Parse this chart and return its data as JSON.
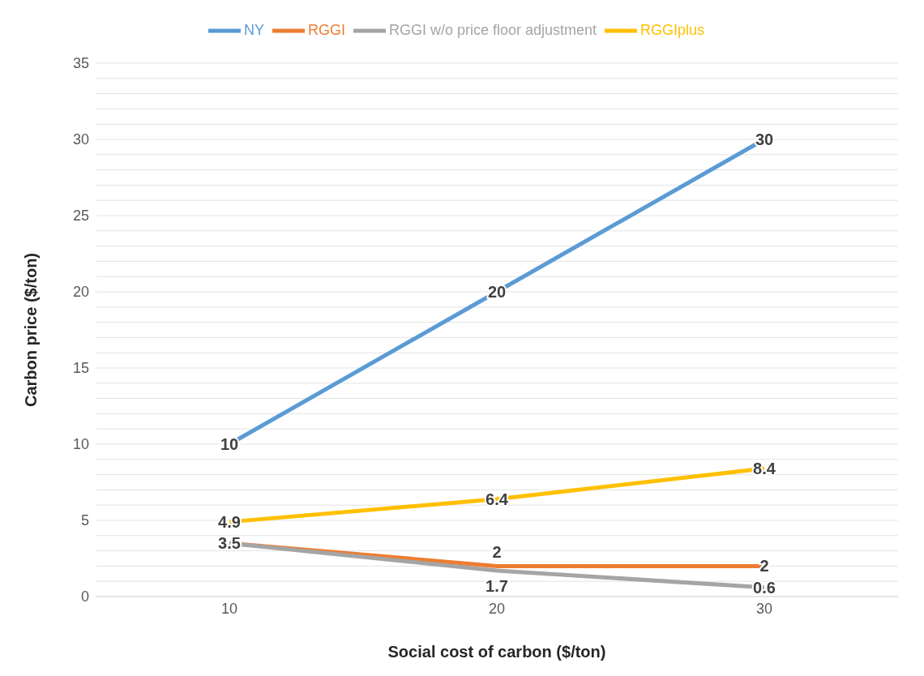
{
  "chart_data": {
    "type": "line",
    "xlabel": "Social cost of carbon ($/ton)",
    "ylabel": "Carbon price ($/ton)",
    "categories": [
      "10",
      "20",
      "30"
    ],
    "series": [
      {
        "name": "NY",
        "color": "#5b9bd5",
        "values": [
          10,
          20,
          30
        ],
        "value_labels": [
          "10",
          "20",
          "30"
        ]
      },
      {
        "name": "RGGI",
        "color": "#ed7d31",
        "values": [
          3.5,
          2,
          2
        ],
        "value_labels": [
          "3.5",
          "2",
          "2"
        ]
      },
      {
        "name": "RGGI w/o price floor adjustment",
        "color": "#a5a5a5",
        "values": [
          3.5,
          1.7,
          0.6
        ],
        "value_labels": [
          null,
          "1.7",
          "0.6"
        ]
      },
      {
        "name": "RGGIplus",
        "color": "#ffc000",
        "values": [
          4.9,
          6.4,
          8.4
        ],
        "value_labels": [
          "4.9",
          "6.4",
          "8.4"
        ]
      }
    ],
    "ylim": [
      0,
      35
    ],
    "yticks": [
      0,
      {
        "value": 1,
        "label": null
      },
      {
        "value": 2,
        "label": null
      },
      {
        "value": 3,
        "label": null
      },
      {
        "value": 4,
        "label": null
      },
      5,
      {
        "value": 6,
        "label": null
      },
      {
        "value": 7,
        "label": null
      },
      {
        "value": 8,
        "label": null
      },
      {
        "value": 9,
        "label": null
      },
      10,
      {
        "value": 11,
        "label": null
      },
      {
        "value": 12,
        "label": null
      },
      {
        "value": 13,
        "label": null
      },
      {
        "value": 14,
        "label": null
      },
      15,
      {
        "value": 16,
        "label": null
      },
      {
        "value": 17,
        "label": null
      },
      {
        "value": 18,
        "label": null
      },
      {
        "value": 19,
        "label": null
      },
      20,
      {
        "value": 21,
        "label": null
      },
      {
        "value": 22,
        "label": null
      },
      {
        "value": 23,
        "label": null
      },
      {
        "value": 24,
        "label": null
      },
      25,
      {
        "value": 26,
        "label": null
      },
      {
        "value": 27,
        "label": null
      },
      {
        "value": 28,
        "label": null
      },
      {
        "value": 29,
        "label": null
      },
      30,
      {
        "value": 31,
        "label": null
      },
      {
        "value": 32,
        "label": null
      },
      {
        "value": 33,
        "label": null
      },
      {
        "value": 34,
        "label": null
      },
      35
    ],
    "grid": "y",
    "legend": "top",
    "marker": "none",
    "line_style": "solid"
  }
}
